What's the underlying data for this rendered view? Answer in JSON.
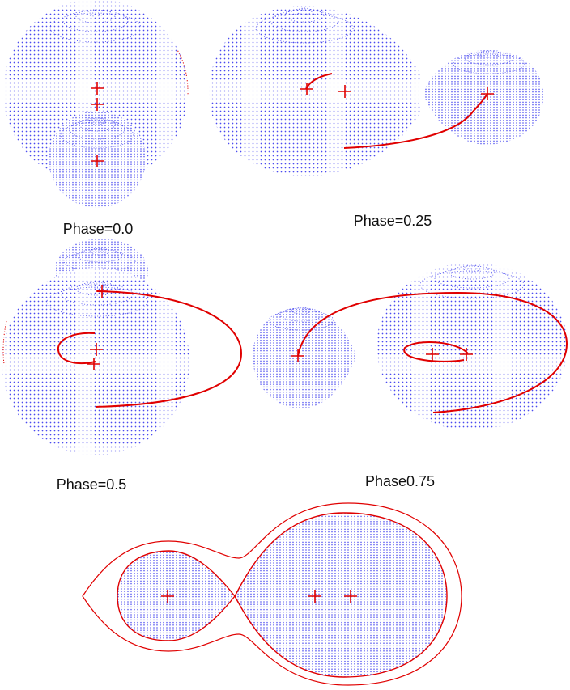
{
  "labels": {
    "phase_0": "Phase=0.0",
    "phase_025": "Phase=0.25",
    "phase_05": "Phase=0.5",
    "phase_075": "Phase0.75"
  },
  "colors": {
    "surface_dots": "#4b4bf0",
    "orbit": "#e00000",
    "marker": "#e00000",
    "background": "#ffffff"
  }
}
